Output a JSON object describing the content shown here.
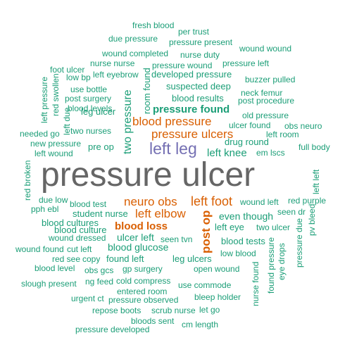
{
  "colors": {
    "teal": "#1b9e77",
    "orange": "#d95f02",
    "purple": "#7570b3",
    "gray": "#666666",
    "background": "#ffffff"
  },
  "words": {
    "fresh_blood": "fresh blood",
    "per_trust": "per trust",
    "due_pressure": "due pressure",
    "pressure_present": "pressure present",
    "wound_wound": "wound wound",
    "wound_completed": "wound completed",
    "nurse_duty": "nurse duty",
    "foot_ulcer": "foot ulcer",
    "nurse_nurse": "nurse nurse",
    "pressure_wound": "pressure wound",
    "pressure_left": "pressure left",
    "low_bp": "low bp",
    "left_eyebrow": "left eyebrow",
    "developed_pressure": "developed pressure",
    "buzzer_pulled": "buzzer pulled",
    "use_bottle": "use bottle",
    "suspected_deep": "suspected deep",
    "neck_femur": "neck femur",
    "post_surgery": "post surgery",
    "blood_results": "blood results",
    "post_procedure": "post procedure",
    "blood_levels": "blood levels",
    "leg_ulcer": "leg ulcer",
    "pressure_found": "pressure found",
    "old_pressure": "old pressure",
    "two_nurses": "two nurses",
    "blood_pressure": "blood pressure",
    "ulcer_found": "ulcer found",
    "obs_neuro": "obs neuro",
    "needed_go": "needed go",
    "pressure_ulcers": "pressure ulcers",
    "left_room": "left room",
    "new_pressure": "new pressure",
    "pre_op": "pre op",
    "drug_round": "drug round",
    "full_body": "full body",
    "left_wound": "left wound",
    "left_leg": "left leg",
    "left_knee": "left knee",
    "em_lscs": "em lscs",
    "pressure_ulcer": "pressure ulcer",
    "due_low": "due low",
    "neuro_obs": "neuro obs",
    "left_foot": "left foot",
    "wound_left": "wound left",
    "red_purple": "red purple",
    "pph_ebl": "pph ebl",
    "blood_test": "blood test",
    "seen_dr": "seen dr",
    "student_nurse": "student nurse",
    "left_elbow": "left elbow",
    "even_though": "even though",
    "blood_cultures": "blood cultures",
    "blood_loss": "blood loss",
    "left_eye": "left eye",
    "two_ulcer": "two ulcer",
    "blood_culture": "blood culture",
    "wound_dressed": "wound dressed",
    "ulcer_left": "ulcer left",
    "seen_tvn": "seen tvn",
    "blood_tests": "blood tests",
    "blood_glucose": "blood glucose",
    "wound_found": "wound found",
    "cut_left": "cut left",
    "low_blood": "low blood",
    "red_see": "red see",
    "copy": "copy",
    "found_left": "found left",
    "leg_ulcers": "leg ulcers",
    "blood_level": "blood level",
    "obs_gcs": "obs gcs",
    "gp_surgery": "gp surgery",
    "open_wound": "open wound",
    "slough_present": "slough present",
    "ng_feed": "ng feed",
    "cold_compress": "cold compress",
    "use_commode": "use commode",
    "entered_room": "entered room",
    "urgent_ct": "urgent ct",
    "pressure_observed": "pressure observed",
    "bleep_holder": "bleep holder",
    "repose_boots": "repose boots",
    "scrub_nurse": "scrub nurse",
    "let_go": "let go",
    "bloods_sent": "bloods sent",
    "cm_length": "cm length",
    "pressure_developed": "pressure developed",
    "left_pressure": "left pressure",
    "red_swollen": "red swollen",
    "left_due": "left due",
    "two_pressure": "two pressure",
    "room_found": "room found",
    "red_broken": "red broken",
    "left_left": "left left",
    "post_op": "post op",
    "pressure_due": "pressure due",
    "pv_bleed": "pv bleed",
    "nurse_found": "nurse found",
    "found_pressure": "found pressure",
    "eye_drops": "eye drops"
  }
}
